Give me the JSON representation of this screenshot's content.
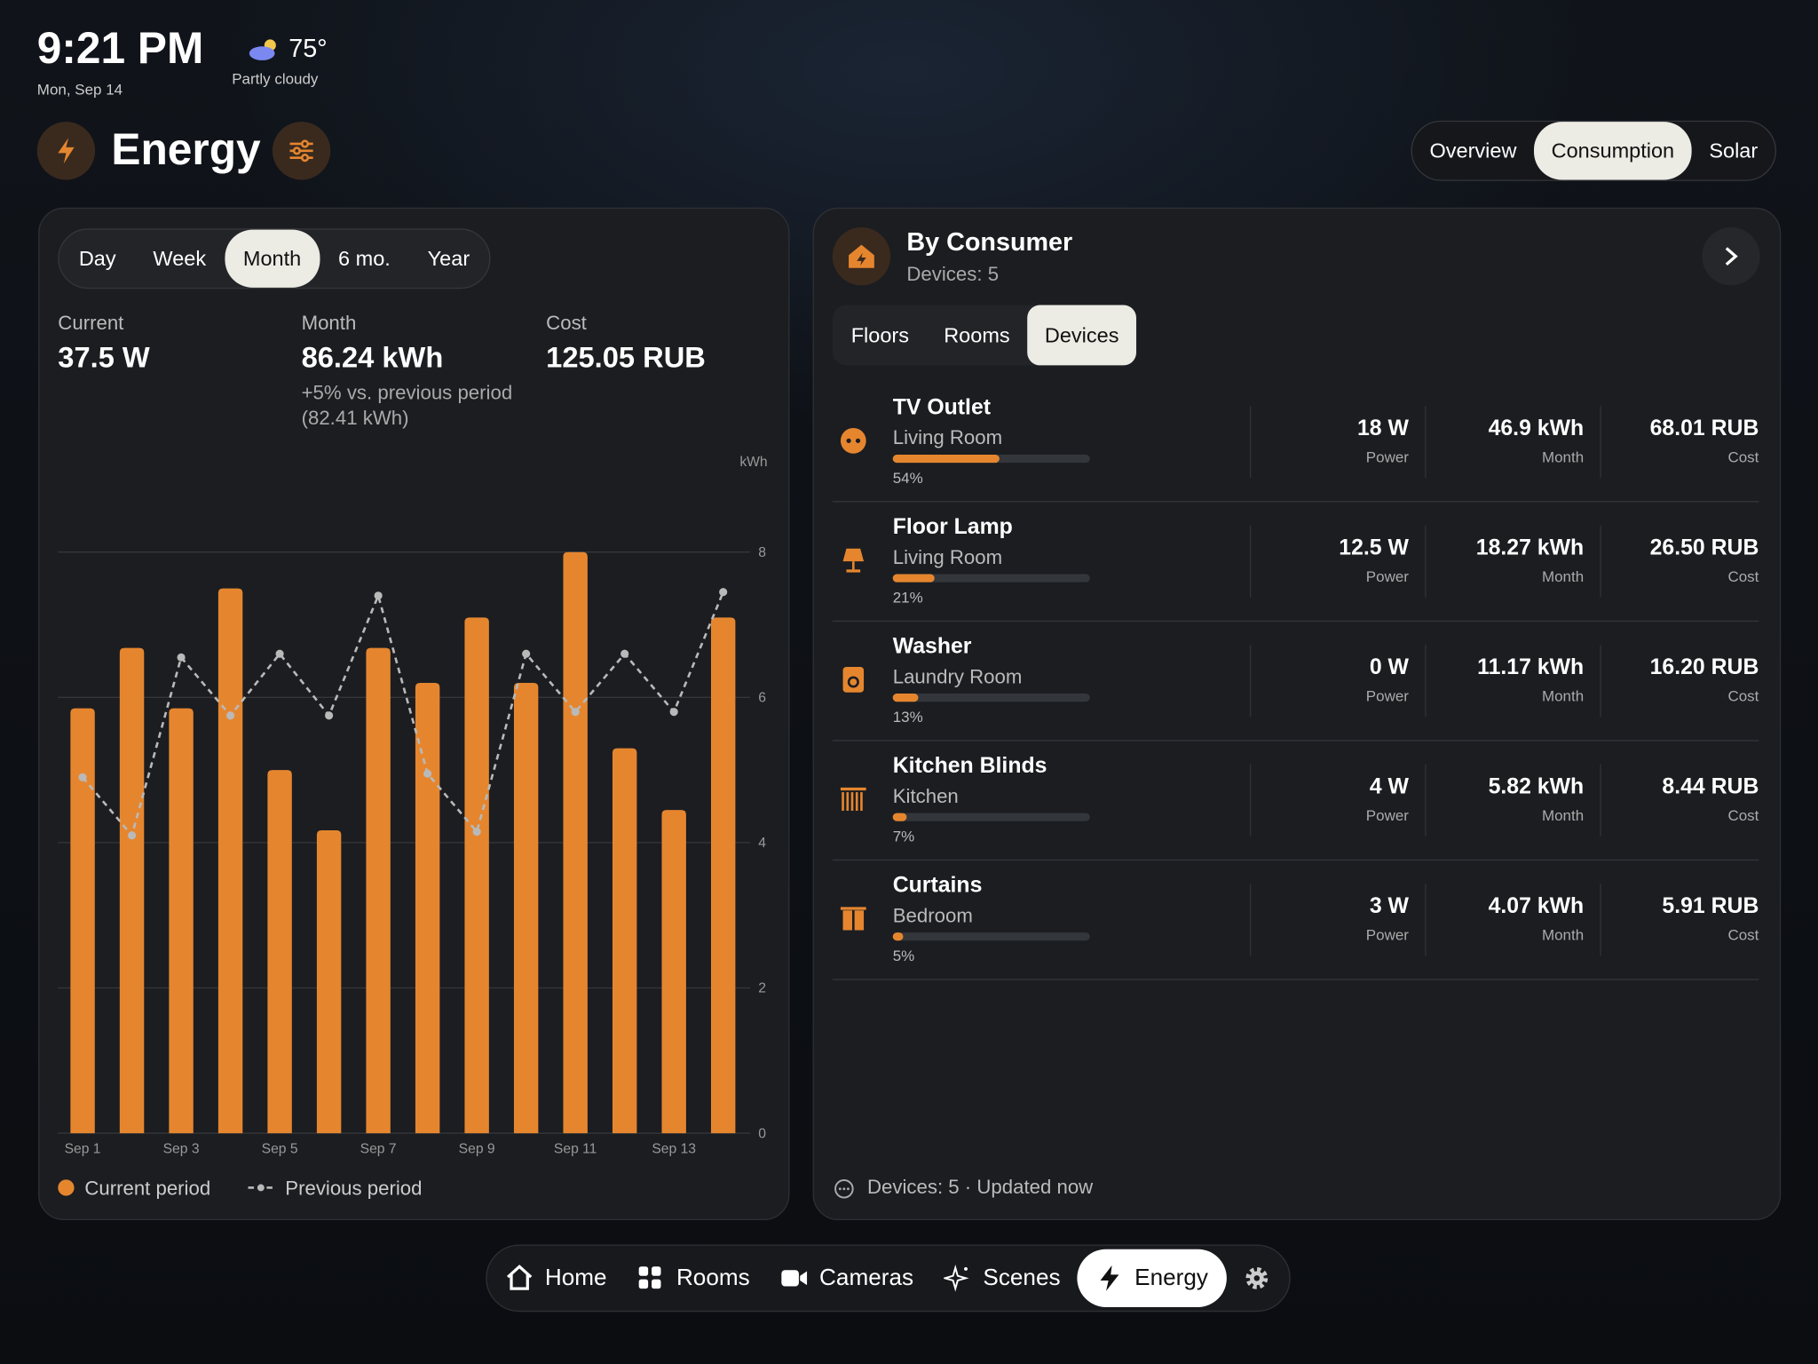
{
  "status": {
    "time": "9:21 PM",
    "date": "Mon, Sep 14",
    "temperature": "75°",
    "weather": "Partly cloudy"
  },
  "header": {
    "title": "Energy",
    "tabs": [
      "Overview",
      "Consumption",
      "Solar"
    ],
    "active_tab": 1
  },
  "summary": {
    "ranges": [
      "Day",
      "Week",
      "Month",
      "6 mo.",
      "Year"
    ],
    "active_range": 2,
    "stats": [
      {
        "label": "Current",
        "value": "37.5 W"
      },
      {
        "label": "Month",
        "value": "86.24 kWh",
        "note": "+5% vs. previous period",
        "note_detail": "(82.41 kWh)"
      },
      {
        "label": "Cost",
        "value": "125.05 RUB"
      }
    ]
  },
  "chart_data": {
    "type": "bar",
    "y_unit": "kWh",
    "categories": [
      "Sep 1",
      null,
      "Sep 3",
      null,
      "Sep 5",
      null,
      "Sep 7",
      null,
      "Sep 9",
      null,
      "Sep 11",
      null,
      "Sep 13",
      null
    ],
    "series": [
      {
        "name": "Current period",
        "color": "#e5862f",
        "values": [
          5.85,
          6.68,
          5.85,
          7.5,
          5.0,
          4.17,
          6.68,
          6.2,
          7.1,
          6.2,
          8.0,
          5.3,
          4.45,
          7.1
        ]
      },
      {
        "name": "Previous period",
        "color": "#b9b9b9",
        "values": [
          4.9,
          4.1,
          6.55,
          5.75,
          6.6,
          5.75,
          7.4,
          4.95,
          4.15,
          6.6,
          5.8,
          6.6,
          5.8,
          7.45
        ]
      }
    ],
    "ylim": [
      0,
      8
    ],
    "yticks": [
      0,
      2,
      4,
      6,
      8
    ],
    "grid": true
  },
  "consumers": {
    "title": "By Consumer",
    "subtitle": "Devices: 5",
    "tabs": [
      "Floors",
      "Rooms",
      "Devices"
    ],
    "active_tab": 2,
    "columns": [
      "Power",
      "Month",
      "Cost"
    ],
    "devices": [
      {
        "name": "TV Outlet",
        "room": "Living Room",
        "share": 54,
        "share_label": "54%",
        "power": "18 W",
        "month": "46.9 kWh",
        "cost": "68.01 RUB"
      },
      {
        "name": "Floor Lamp",
        "room": "Living Room",
        "share": 21,
        "share_label": "21%",
        "power": "12.5 W",
        "month": "18.27 kWh",
        "cost": "26.50 RUB"
      },
      {
        "name": "Washer",
        "room": "Laundry Room",
        "share": 13,
        "share_label": "13%",
        "power": "0 W",
        "month": "11.17 kWh",
        "cost": "16.20 RUB"
      },
      {
        "name": "Kitchen Blinds",
        "room": "Kitchen",
        "share": 7,
        "share_label": "7%",
        "power": "4 W",
        "month": "5.82 kWh",
        "cost": "8.44 RUB"
      },
      {
        "name": "Curtains",
        "room": "Bedroom",
        "share": 5,
        "share_label": "5%",
        "power": "3 W",
        "month": "4.07 kWh",
        "cost": "5.91 RUB"
      }
    ],
    "footer": "Devices: 5 · Updated now"
  },
  "nav": {
    "items": [
      "Home",
      "Rooms",
      "Cameras",
      "Scenes",
      "Energy"
    ],
    "active": 4
  }
}
